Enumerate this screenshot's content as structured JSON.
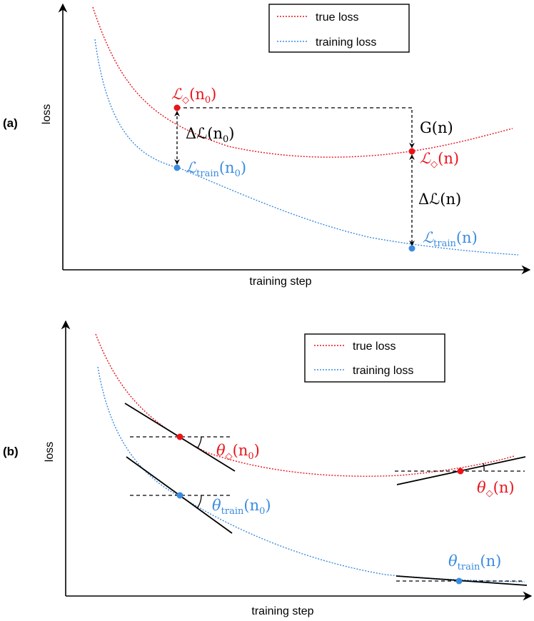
{
  "colors": {
    "true_loss": "#e8141b",
    "training_loss": "#3a8be0",
    "axis": "#000000"
  },
  "panel_a": {
    "tag": "(a)",
    "x_axis_label": "training step",
    "y_axis_label": "loss",
    "legend": {
      "true_loss": "true loss",
      "training_loss": "training loss"
    },
    "labels": {
      "true_loss_n0": {
        "script": "ℒ",
        "sub": "◇",
        "arg": "(n",
        "arg_sub": "0",
        "close": ")"
      },
      "train_loss_n0": {
        "script": "ℒ",
        "sub": "train",
        "arg": "(n",
        "arg_sub": "0",
        "close": ")"
      },
      "true_loss_n": {
        "script": "ℒ",
        "sub": "◇",
        "arg": "(n)"
      },
      "train_loss_n": {
        "script": "ℒ",
        "sub": "train",
        "arg": "(n)"
      },
      "delta_n0": {
        "main": "Δℒ(n",
        "sub": "0",
        "close": ")"
      },
      "delta_n": "Δℒ(n)",
      "gap_n": "G(n)"
    }
  },
  "panel_b": {
    "tag": "(b)",
    "x_axis_label": "training step",
    "y_axis_label": "loss",
    "legend": {
      "true_loss": "true loss",
      "training_loss": "training loss"
    },
    "labels": {
      "theta_true_n0": {
        "main": "θ",
        "sub": "◇",
        "arg": "(n",
        "arg_sub": "0",
        "close": ")"
      },
      "theta_train_n0": {
        "main": "θ",
        "sub": "train",
        "arg": "(n",
        "arg_sub": "0",
        "close": ")"
      },
      "theta_true_n": {
        "main": "θ",
        "sub": "◇",
        "arg": "(n)"
      },
      "theta_train_n": {
        "main": "θ",
        "sub": "train",
        "arg": "(n)"
      }
    }
  }
}
